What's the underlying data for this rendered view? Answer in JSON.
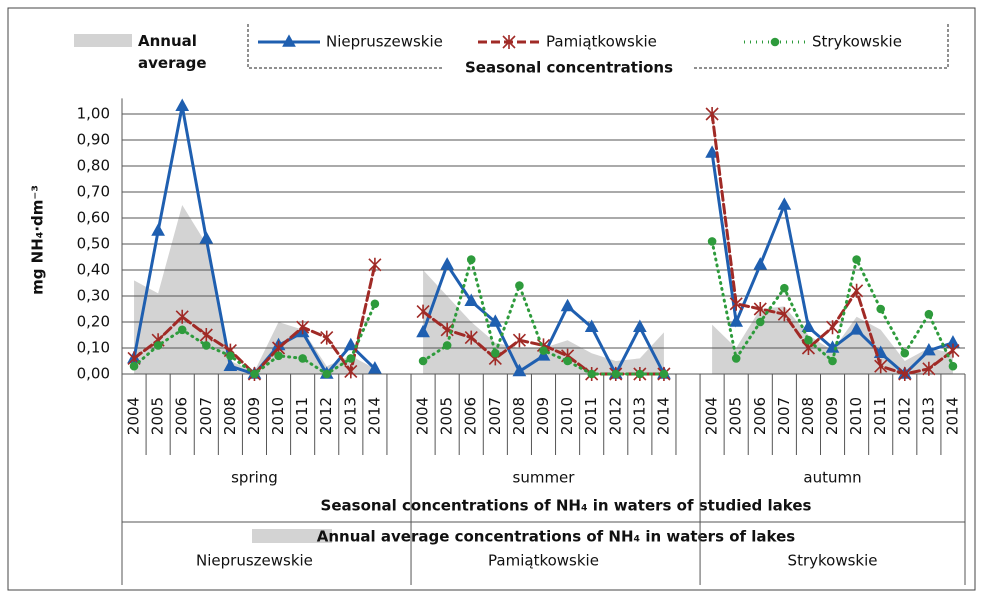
{
  "chart_data": {
    "type": "line",
    "y_label": "mg NH₄·dm⁻³",
    "categories": [
      "2004",
      "2005",
      "2006",
      "2007",
      "2008",
      "2009",
      "2010",
      "2011",
      "2012",
      "2013",
      "2014",
      null,
      "2004",
      "2005",
      "2006",
      "2007",
      "2008",
      "2009",
      "2010",
      "2011",
      "2012",
      "2013",
      "2014",
      null,
      "2004",
      "2005",
      "2006",
      "2007",
      "2008",
      "2009",
      "2010",
      "2011",
      "2012",
      "2013",
      "2014"
    ],
    "groups": [
      "spring",
      "summer",
      "autumn"
    ],
    "area_groups": [
      "Niepruszewskie",
      "Pamiątkowskie",
      "Strykowskie"
    ],
    "x_title": "Seasonal concentrations of NH₄ in waters of studied lakes",
    "area_title": "Annual average concentrations of NH₄ in waters of lakes",
    "legend_title": "Seasonal concentrations",
    "ylim": [
      0,
      1.06
    ],
    "yticks": [
      {
        "value": 0,
        "label": "0,00"
      },
      {
        "value": 0.1,
        "label": "0,10"
      },
      {
        "value": 0.2,
        "label": "0,20"
      },
      {
        "value": 0.3,
        "label": "0,30"
      },
      {
        "value": 0.4,
        "label": "0,40"
      },
      {
        "value": 0.5,
        "label": "0,50"
      },
      {
        "value": 0.6,
        "label": "0,60"
      },
      {
        "value": 0.7,
        "label": "0,70"
      },
      {
        "value": 0.8,
        "label": "0,80"
      },
      {
        "value": 0.9,
        "label": "0,90"
      },
      {
        "value": 1,
        "label": "1,00"
      }
    ],
    "grid": true,
    "series": [
      {
        "name": "Annual average",
        "color": "#d3d3d3",
        "style": "area",
        "values": [
          0.36,
          0.31,
          0.65,
          0.5,
          0.05,
          0.01,
          0.2,
          0.17,
          0.03,
          0.07,
          0.02,
          null,
          0.4,
          0.3,
          0.2,
          0.12,
          0.1,
          0.1,
          0.13,
          0.08,
          0.05,
          0.06,
          0.16,
          null,
          0.19,
          0.1,
          0.25,
          0.26,
          0.15,
          0.09,
          0.22,
          0.17,
          0.05,
          0.1,
          0.08
        ]
      },
      {
        "name": "Niepruszewskie",
        "color": "#1f5fb0",
        "style": "solid",
        "marker": "triangle",
        "values": [
          0.06,
          0.55,
          1.03,
          0.52,
          0.03,
          0.0,
          0.11,
          0.16,
          0.0,
          0.11,
          0.02,
          null,
          0.16,
          0.42,
          0.28,
          0.2,
          0.01,
          0.07,
          0.26,
          0.18,
          0.0,
          0.18,
          0.0,
          null,
          0.85,
          0.2,
          0.42,
          0.65,
          0.18,
          0.1,
          0.17,
          0.08,
          0.0,
          0.09,
          0.12
        ]
      },
      {
        "name": "Pamiątkowskie",
        "color": "#a02a26",
        "style": "dashed",
        "marker": "asterisk",
        "values": [
          0.06,
          0.13,
          0.22,
          0.15,
          0.09,
          0.0,
          0.1,
          0.18,
          0.14,
          0.01,
          0.42,
          null,
          0.24,
          0.17,
          0.14,
          0.06,
          0.13,
          0.11,
          0.07,
          0.0,
          0.0,
          0.0,
          0.0,
          null,
          1.0,
          0.27,
          0.25,
          0.23,
          0.1,
          0.18,
          0.32,
          0.03,
          0.0,
          0.02,
          0.09
        ]
      },
      {
        "name": "Strykowskie",
        "color": "#2e9b3c",
        "style": "dotted",
        "marker": "circle",
        "values": [
          0.03,
          0.11,
          0.17,
          0.11,
          0.07,
          0.0,
          0.07,
          0.06,
          0.0,
          0.06,
          0.27,
          null,
          0.05,
          0.11,
          0.44,
          0.08,
          0.34,
          0.09,
          0.05,
          0.0,
          0.0,
          0.0,
          0.0,
          null,
          0.51,
          0.06,
          0.2,
          0.33,
          0.13,
          0.05,
          0.44,
          0.25,
          0.08,
          0.23,
          0.03
        ]
      }
    ]
  }
}
